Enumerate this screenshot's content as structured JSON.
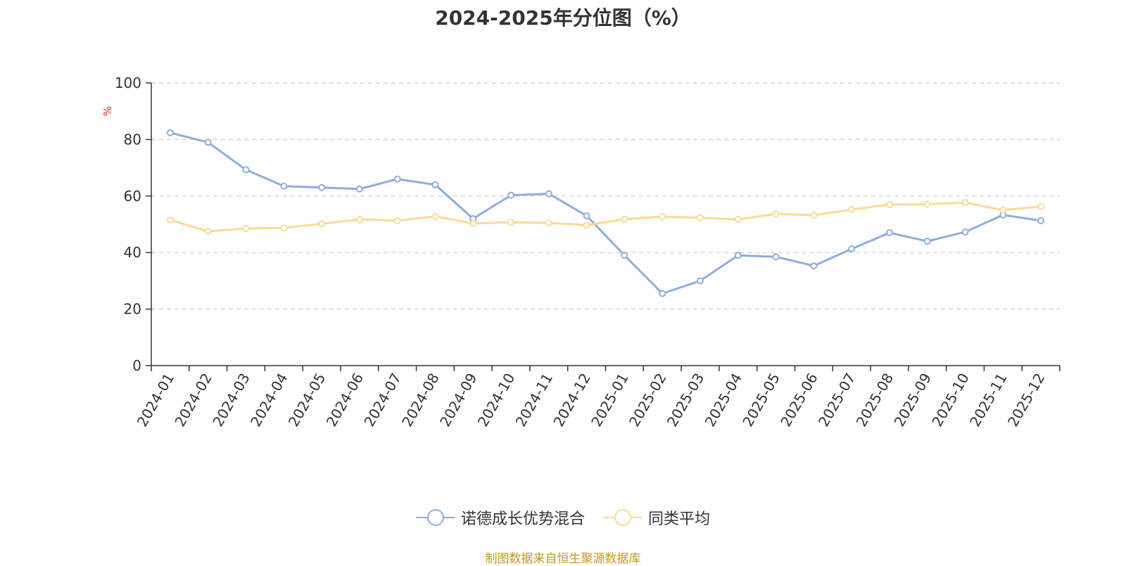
{
  "title": "2024-2025年分位图（%）",
  "source_text": "制图数据来自恒生聚源数据库",
  "colors": {
    "series1": "#8eaedc",
    "series2": "#fcd995",
    "unit": "#e02020",
    "source": "#c8961e",
    "grid": "#cccccc",
    "axis": "#333333"
  },
  "chart_data": {
    "type": "line",
    "title": "2024-2025年分位图（%）",
    "ylabel": "%",
    "xlabel": "",
    "ylim": [
      0,
      100
    ],
    "yticks": [
      0,
      20,
      40,
      60,
      80,
      100
    ],
    "grid": true,
    "legend_position": "bottom-center",
    "categories": [
      "2024-01",
      "2024-02",
      "2024-03",
      "2024-04",
      "2024-05",
      "2024-06",
      "2024-07",
      "2024-08",
      "2024-09",
      "2024-10",
      "2024-11",
      "2024-12",
      "2025-01",
      "2025-02",
      "2025-03",
      "2025-04",
      "2025-05",
      "2025-06",
      "2025-07",
      "2025-08",
      "2025-09",
      "2025-10",
      "2025-11",
      "2025-12"
    ],
    "series": [
      {
        "name": "诺德成长优势混合",
        "color": "#8eaedc",
        "values": [
          82.4,
          79.0,
          69.3,
          63.5,
          63.0,
          62.5,
          66.0,
          64.0,
          52.0,
          60.3,
          60.8,
          53.0,
          39.0,
          25.5,
          30.0,
          39.0,
          38.5,
          35.3,
          41.3,
          47.0,
          44.0,
          47.3,
          53.3,
          51.3
        ]
      },
      {
        "name": "同类平均",
        "color": "#fcd995",
        "values": [
          51.5,
          47.5,
          48.5,
          48.7,
          50.2,
          51.7,
          51.3,
          52.8,
          50.3,
          50.7,
          50.5,
          49.7,
          51.8,
          52.7,
          52.3,
          51.7,
          53.7,
          53.2,
          55.2,
          57.0,
          57.1,
          57.7,
          55.0,
          56.3
        ]
      }
    ]
  }
}
